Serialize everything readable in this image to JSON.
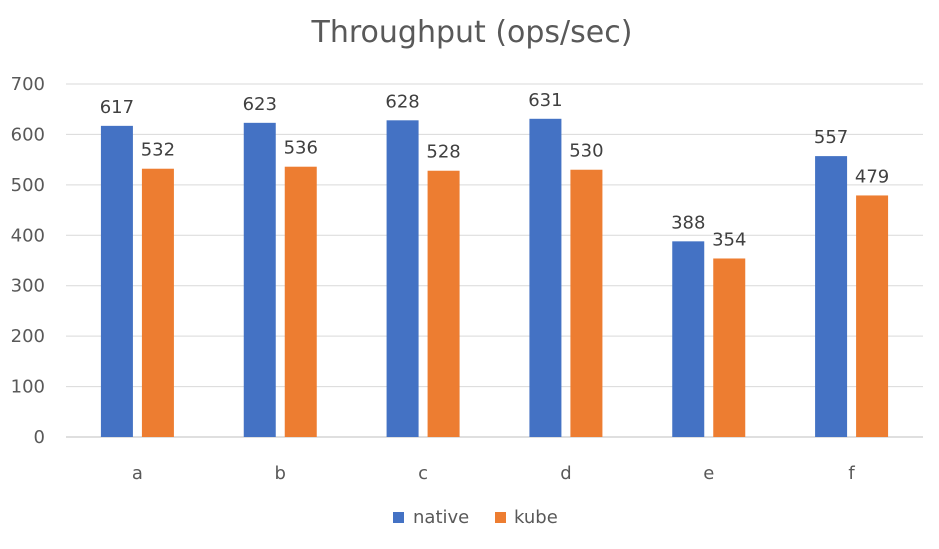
{
  "chart_data": {
    "type": "bar",
    "title": "Throughput (ops/sec)",
    "categories": [
      "a",
      "b",
      "c",
      "d",
      "e",
      "f"
    ],
    "series": [
      {
        "name": "native",
        "color": "#4472c4",
        "values": [
          617,
          623,
          628,
          631,
          388,
          557
        ]
      },
      {
        "name": "kube",
        "color": "#ed7d31",
        "values": [
          532,
          536,
          528,
          530,
          354,
          479
        ]
      }
    ],
    "yticks": [
      "0",
      "100",
      "200",
      "300",
      "400",
      "500",
      "600",
      "700"
    ],
    "ylim": [
      0,
      700
    ],
    "grid": true,
    "legend_position": "bottom",
    "data_labels": true
  }
}
